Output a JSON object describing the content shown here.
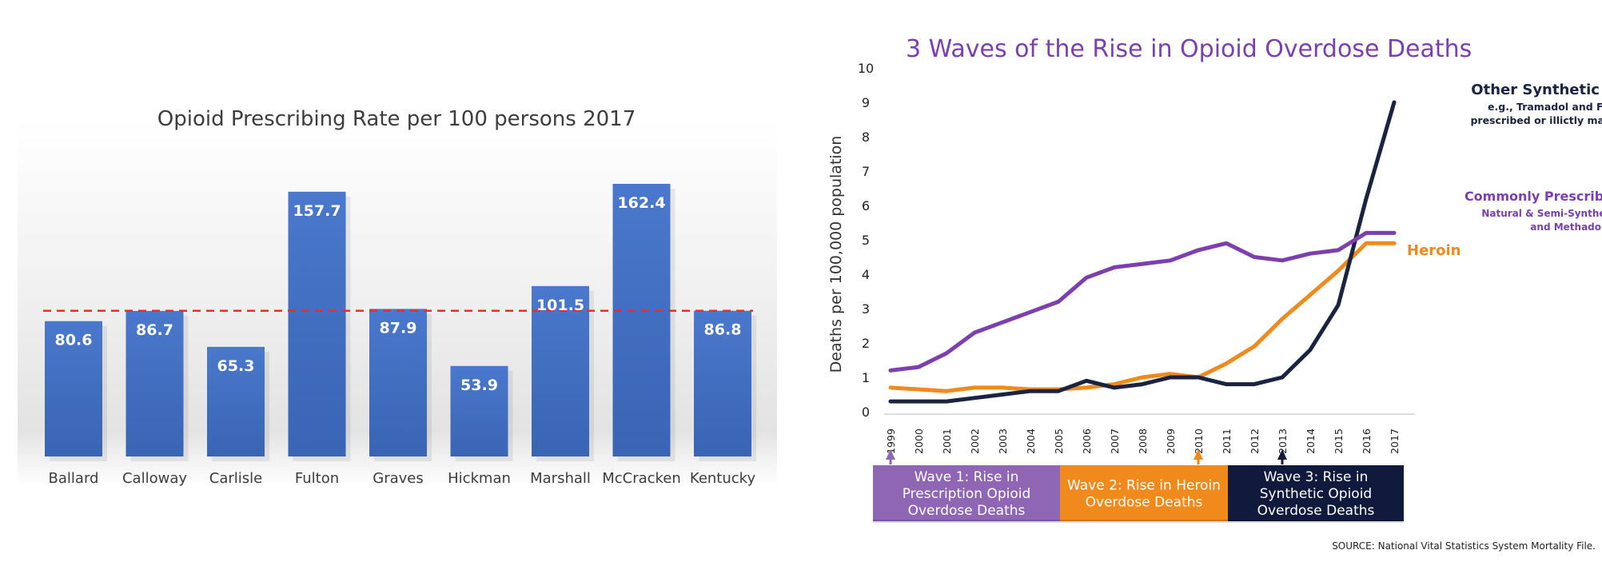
{
  "chart_data": [
    {
      "type": "bar",
      "title": "Opioid Prescribing Rate per 100 persons 2017",
      "categories": [
        "Ballard",
        "Calloway",
        "Carlisle",
        "Fulton",
        "Graves",
        "Hickman",
        "Marshall",
        "McCracken",
        "Kentucky"
      ],
      "values": [
        80.6,
        86.7,
        65.3,
        157.7,
        87.9,
        53.9,
        101.5,
        162.4,
        86.8
      ],
      "reference_line": 86.8,
      "ylim": [
        0,
        170
      ],
      "grid": false,
      "colors": {
        "bar": "#4472c4",
        "reference_line": "#e03030"
      }
    },
    {
      "type": "line",
      "title": "3 Waves of the Rise in Opioid Overdose Deaths",
      "ylabel": "Deaths per 100,000 population",
      "ylim": [
        0,
        10
      ],
      "yticks": [
        0,
        1,
        2,
        3,
        4,
        5,
        6,
        7,
        8,
        9,
        10
      ],
      "x": [
        "1999",
        "2000",
        "2001",
        "2002",
        "2003",
        "2004",
        "2005",
        "2006",
        "2007",
        "2008",
        "2009",
        "2010",
        "2011",
        "2012",
        "2013",
        "2014",
        "2015",
        "2016",
        "2017"
      ],
      "series": [
        {
          "name": "Other Synthetic Opioids",
          "note": "e.g., Tramadol and Fentanyl, prescribed or illictly manufactured",
          "color": "#1a2340",
          "values": [
            0.3,
            0.3,
            0.3,
            0.4,
            0.5,
            0.6,
            0.6,
            0.9,
            0.7,
            0.8,
            1.0,
            1.0,
            0.8,
            0.8,
            1.0,
            1.8,
            3.1,
            6.2,
            9.0
          ]
        },
        {
          "name": "Commonly Prescribed Opioids",
          "note": "Natural & Semi-Synthetic Opioids and Methadone",
          "color": "#7b3fb0",
          "values": [
            1.2,
            1.3,
            1.7,
            2.3,
            2.6,
            2.9,
            3.2,
            3.9,
            4.2,
            4.3,
            4.4,
            4.7,
            4.9,
            4.5,
            4.4,
            4.6,
            4.7,
            5.2,
            5.2
          ]
        },
        {
          "name": "Heroin",
          "color": "#f08a1c",
          "values": [
            0.7,
            0.65,
            0.6,
            0.7,
            0.7,
            0.65,
            0.65,
            0.7,
            0.8,
            1.0,
            1.1,
            1.0,
            1.4,
            1.9,
            2.7,
            3.4,
            4.1,
            4.9,
            4.9
          ]
        }
      ],
      "waves": [
        {
          "label": "Wave 1: Rise in Prescription Opioid Overdose Deaths",
          "start_year": "1999",
          "end_year": "2005",
          "marker_year": "1999",
          "color": "#8e66b4"
        },
        {
          "label": "Wave 2: Rise in Heroin Overdose Deaths",
          "start_year": "2005",
          "end_year": "2011",
          "marker_year": "2010",
          "color": "#f08a1c"
        },
        {
          "label": "Wave 3: Rise in Synthetic Opioid Overdose Deaths",
          "start_year": "2011",
          "end_year": "2017",
          "marker_year": "2013",
          "color": "#0f1a3c"
        }
      ],
      "source": "SOURCE: National Vital Statistics System Mortality File."
    }
  ]
}
